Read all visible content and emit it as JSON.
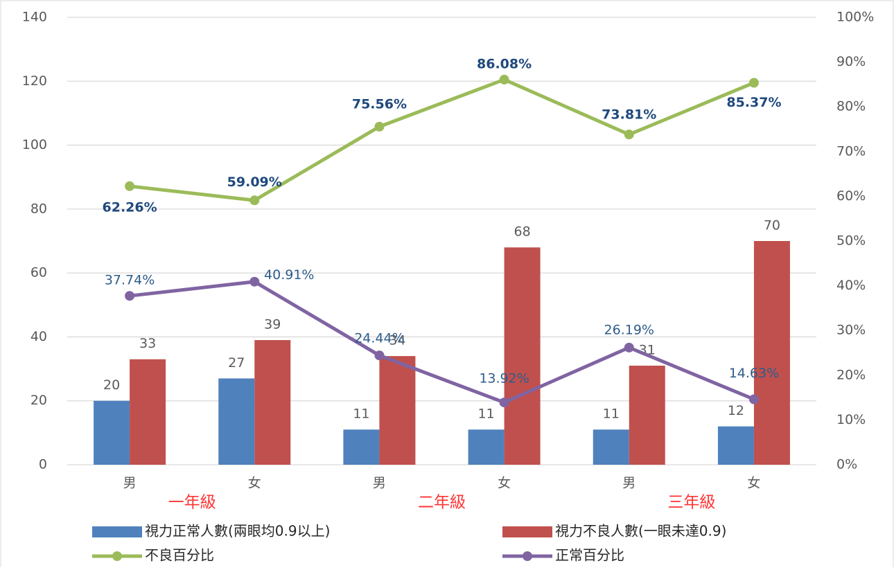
{
  "chart_data": {
    "type": "bar",
    "categories": [
      "男",
      "女",
      "男",
      "女",
      "男",
      "女"
    ],
    "groups": [
      "一年級",
      "二年級",
      "三年級"
    ],
    "group_color": "#ff3333",
    "ylim": [
      0,
      140
    ],
    "yticks": [
      0,
      20,
      40,
      60,
      80,
      100,
      120,
      140
    ],
    "y2lim": [
      0,
      100
    ],
    "y2ticks": [
      {
        "value": 0,
        "label": "0%"
      },
      {
        "value": 10,
        "label": "10%"
      },
      {
        "value": 20,
        "label": "20%"
      },
      {
        "value": 30,
        "label": "30%"
      },
      {
        "value": 40,
        "label": "40%"
      },
      {
        "value": 50,
        "label": "50%"
      },
      {
        "value": 60,
        "label": "60%"
      },
      {
        "value": 70,
        "label": "70%"
      },
      {
        "value": 80,
        "label": "80%"
      },
      {
        "value": 90,
        "label": "90%"
      },
      {
        "value": 100,
        "label": "100%"
      }
    ],
    "grid": true,
    "legend": "bottom",
    "series": [
      {
        "name": "視力正常人數(兩眼均0.9以上)",
        "type": "bar",
        "color": "#4f81bd",
        "values": [
          20,
          27,
          11,
          11,
          11,
          12
        ]
      },
      {
        "name": "視力不良人數(一眼未達0.9)",
        "type": "bar",
        "color": "#c0504d",
        "values": [
          33,
          39,
          34,
          68,
          31,
          70
        ]
      },
      {
        "name": "不良百分比",
        "type": "line",
        "axis": "y2",
        "color": "#9bbb59",
        "values": [
          62.26,
          59.09,
          75.56,
          86.08,
          73.81,
          85.37
        ],
        "value_labels": [
          "62.26%",
          "59.09%",
          "75.56%",
          "86.08%",
          "73.81%",
          "85.37%"
        ]
      },
      {
        "name": "正常百分比",
        "type": "line",
        "axis": "y2",
        "color": "#8064a2",
        "values": [
          37.74,
          40.91,
          24.44,
          13.92,
          26.19,
          14.63
        ],
        "value_labels": [
          "37.74%",
          "40.91%",
          "24.44%",
          "13.92%",
          "26.19%",
          "14.63%"
        ]
      }
    ]
  }
}
